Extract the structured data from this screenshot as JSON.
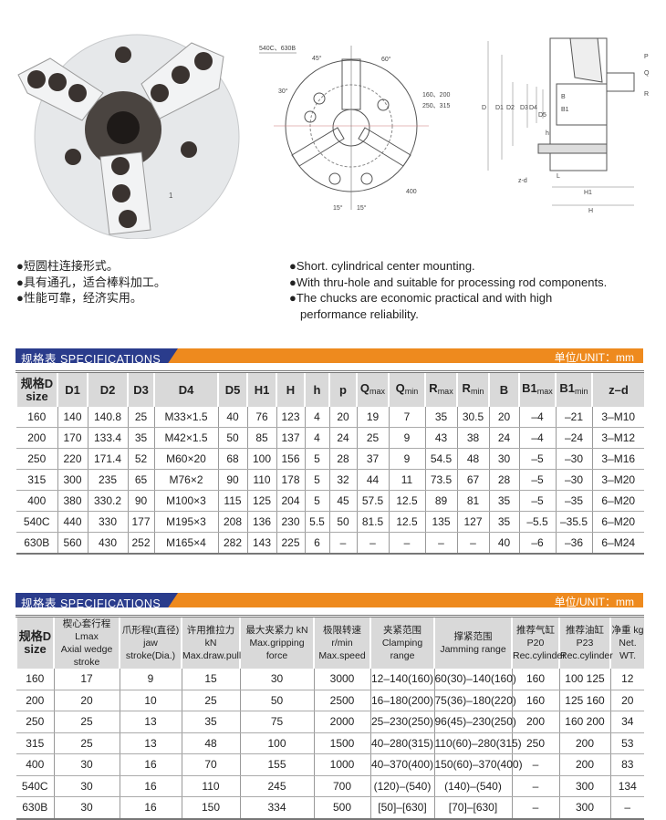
{
  "photo": {
    "engraving": "1"
  },
  "front_view": {
    "labels": [
      "540C、630B",
      "45°",
      "60°",
      "30°",
      "160、200",
      "250、315",
      "400",
      "15°",
      "15°"
    ]
  },
  "section_view": {
    "labels": [
      "D",
      "D1",
      "D2",
      "D3",
      "D4",
      "D5",
      "B",
      "B1",
      "h",
      "P",
      "Q",
      "R",
      "z-d",
      "L",
      "H1",
      "H"
    ]
  },
  "features_cn": [
    "●短圆柱连接形式。",
    "●具有通孔，适合棒料加工。",
    "●性能可靠，经济实用。"
  ],
  "features_en": [
    "●Short. cylindrical center mounting.",
    "●With thru-hole and suitable for processing rod components.",
    "●The chucks are economic practical and with high",
    "performance reliability."
  ],
  "table1": {
    "bar_title": "规格表  SPECIFICATIONS",
    "unit": "单位/UNIT：mm",
    "headers": [
      {
        "main": "规格D",
        "sub": "size"
      },
      {
        "main": "D1"
      },
      {
        "main": "D2"
      },
      {
        "main": "D3"
      },
      {
        "main": "D4"
      },
      {
        "main": "D5"
      },
      {
        "main": "H1"
      },
      {
        "main": "H"
      },
      {
        "main": "h"
      },
      {
        "main": "p"
      },
      {
        "main": "Q",
        "sub": "max"
      },
      {
        "main": "Q",
        "sub": "min"
      },
      {
        "main": "R",
        "sub": "max"
      },
      {
        "main": "R",
        "sub": "min"
      },
      {
        "main": "B"
      },
      {
        "main": "B1",
        "sub": "max"
      },
      {
        "main": "B1",
        "sub": "min"
      },
      {
        "main": "z–d"
      }
    ],
    "rows": [
      [
        "160",
        "140",
        "140.8",
        "25",
        "M33×1.5",
        "40",
        "76",
        "123",
        "4",
        "20",
        "19",
        "7",
        "35",
        "30.5",
        "20",
        "–4",
        "–21",
        "3–M10"
      ],
      [
        "200",
        "170",
        "133.4",
        "35",
        "M42×1.5",
        "50",
        "85",
        "137",
        "4",
        "24",
        "25",
        "9",
        "43",
        "38",
        "24",
        "–4",
        "–24",
        "3–M12"
      ],
      [
        "250",
        "220",
        "171.4",
        "52",
        "M60×20",
        "68",
        "100",
        "156",
        "5",
        "28",
        "37",
        "9",
        "54.5",
        "48",
        "30",
        "–5",
        "–30",
        "3–M16"
      ],
      [
        "315",
        "300",
        "235",
        "65",
        "M76×2",
        "90",
        "110",
        "178",
        "5",
        "32",
        "44",
        "11",
        "73.5",
        "67",
        "28",
        "–5",
        "–30",
        "3–M20"
      ],
      [
        "400",
        "380",
        "330.2",
        "90",
        "M100×3",
        "115",
        "125",
        "204",
        "5",
        "45",
        "57.5",
        "12.5",
        "89",
        "81",
        "35",
        "–5",
        "–35",
        "6–M20"
      ],
      [
        "540C",
        "440",
        "330",
        "177",
        "M195×3",
        "208",
        "136",
        "230",
        "5.5",
        "50",
        "81.5",
        "12.5",
        "135",
        "127",
        "35",
        "–5.5",
        "–35.5",
        "6–M20"
      ],
      [
        "630B",
        "560",
        "430",
        "252",
        "M165×4",
        "282",
        "143",
        "225",
        "6",
        "–",
        "–",
        "–",
        "–",
        "–",
        "40",
        "–6",
        "–36",
        "6–M24"
      ]
    ]
  },
  "table2": {
    "bar_title": "规格表  SPECIFICATIONS",
    "unit": "单位/UNIT：mm",
    "headers": [
      {
        "cn": "规格D",
        "en": "size"
      },
      {
        "cn": "楔心套行程Lmax",
        "en": "Axial wedge stroke"
      },
      {
        "cn": "爪形程t(直径)",
        "en": "jaw stroke(Dia.)"
      },
      {
        "cn": "许用推拉力 kN",
        "en": "Max.draw.pull"
      },
      {
        "cn": "最大夹紧力 kN",
        "en": "Max.gripping force"
      },
      {
        "cn": "极限转速 r/min",
        "en": "Max.speed"
      },
      {
        "cn": "夹紧范围",
        "en": "Clamping range"
      },
      {
        "cn": "撑紧范围",
        "en": "Jamming range"
      },
      {
        "cn": "推荐气缸P20",
        "en": "Rec.cylinder"
      },
      {
        "cn": "推荐油缸P23",
        "en": "Rec.cylinder"
      },
      {
        "cn": "净重 kg",
        "en": "Net. WT."
      }
    ],
    "rows": [
      [
        "160",
        "17",
        "9",
        "15",
        "30",
        "3000",
        "12–140(160)",
        "60(30)–140(160)",
        "160",
        "100  125",
        "12"
      ],
      [
        "200",
        "20",
        "10",
        "25",
        "50",
        "2500",
        "16–180(200)",
        "75(36)–180(220)",
        "160",
        "125  160",
        "20"
      ],
      [
        "250",
        "25",
        "13",
        "35",
        "75",
        "2000",
        "25–230(250)",
        "96(45)–230(250)",
        "200",
        "160  200",
        "34"
      ],
      [
        "315",
        "25",
        "13",
        "48",
        "100",
        "1500",
        "40–280(315)",
        "110(60)–280(315)",
        "250",
        "200",
        "53"
      ],
      [
        "400",
        "30",
        "16",
        "70",
        "155",
        "1000",
        "40–370(400)",
        "150(60)–370(400)",
        "–",
        "200",
        "83"
      ],
      [
        "540C",
        "30",
        "16",
        "110",
        "245",
        "700",
        "(120)–(540)",
        "(140)–(540)",
        "–",
        "300",
        "134"
      ],
      [
        "630B",
        "30",
        "16",
        "150",
        "334",
        "500",
        "[50]–[630]",
        "[70]–[630]",
        "–",
        "300",
        "–"
      ]
    ]
  },
  "colors": {
    "orange": "#ee8a1e",
    "navy": "#2a3c8c",
    "header_gray": "#d9d9d9"
  }
}
